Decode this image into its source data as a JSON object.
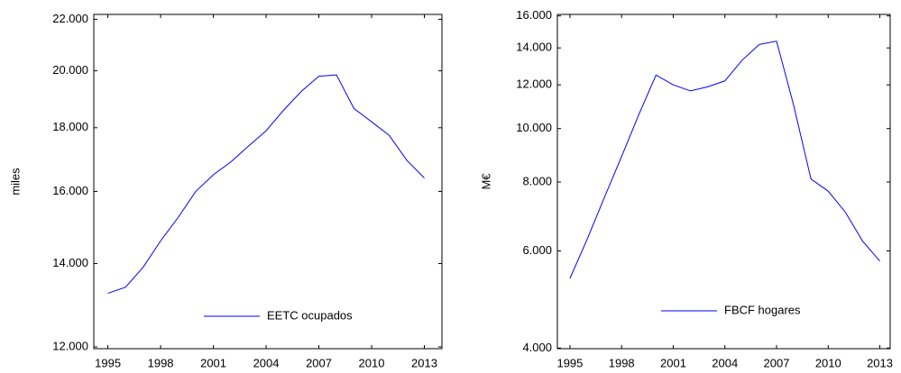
{
  "chart_data": [
    {
      "type": "line",
      "ylabel": "miles",
      "log_y": true,
      "legend": "lower right",
      "x": [
        1995,
        1996,
        1997,
        1998,
        1999,
        2000,
        2001,
        2002,
        2003,
        2004,
        2005,
        2006,
        2007,
        2008,
        2009,
        2010,
        2011,
        2012,
        2013
      ],
      "series": [
        {
          "name": "EETC ocupados",
          "color": "#0000ff",
          "values": [
            13250,
            13400,
            13900,
            14600,
            15250,
            16000,
            16500,
            16900,
            17400,
            17900,
            18600,
            19250,
            19800,
            19850,
            18650,
            18200,
            17750,
            16950,
            16400
          ]
        }
      ],
      "xlim": [
        1994.2,
        2014
      ],
      "xticks": [
        1995,
        1998,
        2001,
        2004,
        2007,
        2010,
        2013
      ],
      "ylim": [
        11960,
        22200
      ],
      "yticks": [
        {
          "value": 12000,
          "label": "12.000"
        },
        {
          "value": 14000,
          "label": "14.000"
        },
        {
          "value": 16000,
          "label": "16.000"
        },
        {
          "value": 18000,
          "label": "18.000"
        },
        {
          "value": 20000,
          "label": "20.000"
        },
        {
          "value": 22000,
          "label": "22.000"
        }
      ]
    },
    {
      "type": "line",
      "ylabel": "M€",
      "log_y": true,
      "legend": "lower right",
      "x": [
        1995,
        1996,
        1997,
        1998,
        1999,
        2000,
        2001,
        2002,
        2003,
        2004,
        2005,
        2006,
        2007,
        2008,
        2009,
        2010,
        2011,
        2012,
        2013
      ],
      "series": [
        {
          "name": "FBCF hogares",
          "color": "#0000ff",
          "values": [
            5350,
            6300,
            7500,
            8900,
            10600,
            12500,
            12000,
            11700,
            11900,
            12200,
            13300,
            14200,
            14400,
            11000,
            8100,
            7700,
            7050,
            6250,
            5750
          ]
        }
      ],
      "xlim": [
        1994.27,
        2013.6
      ],
      "xticks": [
        1995,
        1998,
        2001,
        2004,
        2007,
        2010,
        2013
      ],
      "ylim": [
        3990,
        16100
      ],
      "yticks": [
        {
          "value": 4000,
          "label": "4.000"
        },
        {
          "value": 6000,
          "label": "6.000"
        },
        {
          "value": 8000,
          "label": "8.000"
        },
        {
          "value": 10000,
          "label": "10.000"
        },
        {
          "value": 12000,
          "label": "12.000"
        },
        {
          "value": 14000,
          "label": "14.000"
        },
        {
          "value": 16000,
          "label": "16.000"
        }
      ]
    }
  ]
}
